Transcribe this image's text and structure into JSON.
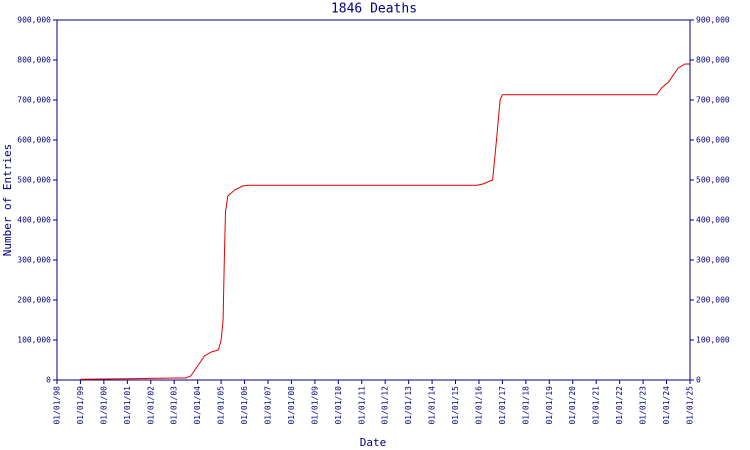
{
  "chart_data": {
    "type": "line",
    "title": "1846 Deaths",
    "xlabel": "Date",
    "ylabel": "Number of Entries",
    "color": "#e00000",
    "axis_color": "#000080",
    "x": [
      "1999-01-01",
      "2000-01-01",
      "2001-01-01",
      "2002-01-01",
      "2003-01-01",
      "2003-07-01",
      "2003-09-15",
      "2004-01-01",
      "2004-04-15",
      "2004-08-01",
      "2004-11-20",
      "2005-01-01",
      "2005-02-01",
      "2005-02-20",
      "2005-03-10",
      "2005-04-15",
      "2005-08-01",
      "2005-12-01",
      "2006-03-01",
      "2015-12-01",
      "2016-03-01",
      "2016-08-01",
      "2016-10-01",
      "2016-11-25",
      "2017-01-01",
      "2023-08-01",
      "2023-10-15",
      "2024-02-01",
      "2024-07-01",
      "2024-10-15",
      "2025-01-01"
    ],
    "values": [
      2000,
      2500,
      3000,
      4000,
      5000,
      5000,
      10000,
      35000,
      60000,
      70000,
      75000,
      100000,
      150000,
      300000,
      420000,
      460000,
      475000,
      485000,
      487000,
      487000,
      490000,
      500000,
      600000,
      700000,
      713000,
      713000,
      730000,
      745000,
      780000,
      790000,
      790000
    ],
    "xlim": [
      "1998-01-01",
      "2025-01-01"
    ],
    "xticks": [
      {
        "value": "1998-01-01",
        "label": "01/01/98"
      },
      {
        "value": "1999-01-01",
        "label": "01/01/99"
      },
      {
        "value": "2000-01-01",
        "label": "01/01/00"
      },
      {
        "value": "2001-01-01",
        "label": "01/01/01"
      },
      {
        "value": "2002-01-01",
        "label": "01/01/02"
      },
      {
        "value": "2003-01-01",
        "label": "01/01/03"
      },
      {
        "value": "2004-01-01",
        "label": "01/01/04"
      },
      {
        "value": "2005-01-01",
        "label": "01/01/05"
      },
      {
        "value": "2006-01-01",
        "label": "01/01/06"
      },
      {
        "value": "2007-01-01",
        "label": "01/01/07"
      },
      {
        "value": "2008-01-01",
        "label": "01/01/08"
      },
      {
        "value": "2009-01-01",
        "label": "01/01/09"
      },
      {
        "value": "2010-01-01",
        "label": "01/01/10"
      },
      {
        "value": "2011-01-01",
        "label": "01/01/11"
      },
      {
        "value": "2012-01-01",
        "label": "01/01/12"
      },
      {
        "value": "2013-01-01",
        "label": "01/01/13"
      },
      {
        "value": "2014-01-01",
        "label": "01/01/14"
      },
      {
        "value": "2015-01-01",
        "label": "01/01/15"
      },
      {
        "value": "2016-01-01",
        "label": "01/01/16"
      },
      {
        "value": "2017-01-01",
        "label": "01/01/17"
      },
      {
        "value": "2018-01-01",
        "label": "01/01/18"
      },
      {
        "value": "2019-01-01",
        "label": "01/01/19"
      },
      {
        "value": "2020-01-01",
        "label": "01/01/20"
      },
      {
        "value": "2021-01-01",
        "label": "01/01/21"
      },
      {
        "value": "2022-01-01",
        "label": "01/01/22"
      },
      {
        "value": "2023-01-01",
        "label": "01/01/23"
      },
      {
        "value": "2024-01-01",
        "label": "01/01/24"
      },
      {
        "value": "2025-01-01",
        "label": "01/01/25"
      }
    ],
    "ylim": [
      0,
      900000
    ],
    "yticks": [
      0,
      {
        "value": 100000,
        "label": "100,000"
      },
      {
        "value": 200000,
        "label": "200,000"
      },
      {
        "value": 300000,
        "label": "300,000"
      },
      {
        "value": 400000,
        "label": "400,000"
      },
      {
        "value": 500000,
        "label": "500,000"
      },
      {
        "value": 600000,
        "label": "600,000"
      },
      {
        "value": 700000,
        "label": "700,000"
      },
      {
        "value": 800000,
        "label": "800,000"
      },
      {
        "value": 900000,
        "label": "900,000"
      }
    ],
    "y2lim": [
      0,
      900000
    ],
    "y2ticks": [
      0,
      {
        "value": 100000,
        "label": "100,000"
      },
      {
        "value": 200000,
        "label": "200,000"
      },
      {
        "value": 300000,
        "label": "300,000"
      },
      {
        "value": 400000,
        "label": "400,000"
      },
      {
        "value": 500000,
        "label": "500,000"
      },
      {
        "value": 600000,
        "label": "600,000"
      },
      {
        "value": 700000,
        "label": "700,000"
      },
      {
        "value": 800000,
        "label": "800,000"
      },
      {
        "value": 900000,
        "label": "900,000"
      }
    ],
    "grid": false
  }
}
